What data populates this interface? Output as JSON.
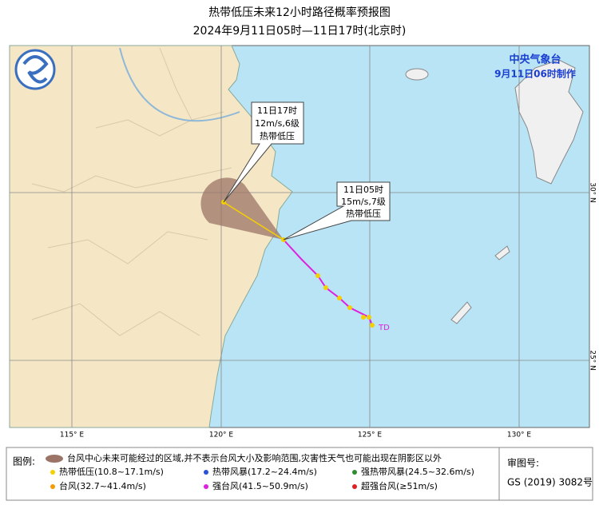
{
  "header": {
    "title": "热带低压未来12小时路径概率预报图",
    "subtitle": "2024年9月11日05时—11日17时(北京时)"
  },
  "agency": {
    "name": "中央气象台",
    "issued": "9月11日06时制作"
  },
  "callouts": [
    {
      "time": "11日17时",
      "wind": "12m/s,6级",
      "category": "热带低压"
    },
    {
      "time": "11日05时",
      "wind": "15m/s,7级",
      "category": "热带低压"
    }
  ],
  "track_label": "TD",
  "longitudes": [
    "115° E",
    "120° E",
    "125° E",
    "130° E"
  ],
  "latitudes": [
    "30° N",
    "25° N"
  ],
  "legend": {
    "title": "图例:",
    "cone": "台风中心未来可能经过的区域,并不表示台风大小及影响范围,灾害性天气也可能出现在阴影区以外",
    "items": [
      "热带低压(10.8~17.1m/s)",
      "热带风暴(17.2~24.4m/s)",
      "强热带风暴(24.5~32.6m/s)",
      "台风(32.7~41.4m/s)",
      "强台风(41.5~50.9m/s)",
      "超强台风(≥51m/s)"
    ]
  },
  "approval": {
    "label": "审图号:",
    "number": "GS (2019) 3082号"
  }
}
